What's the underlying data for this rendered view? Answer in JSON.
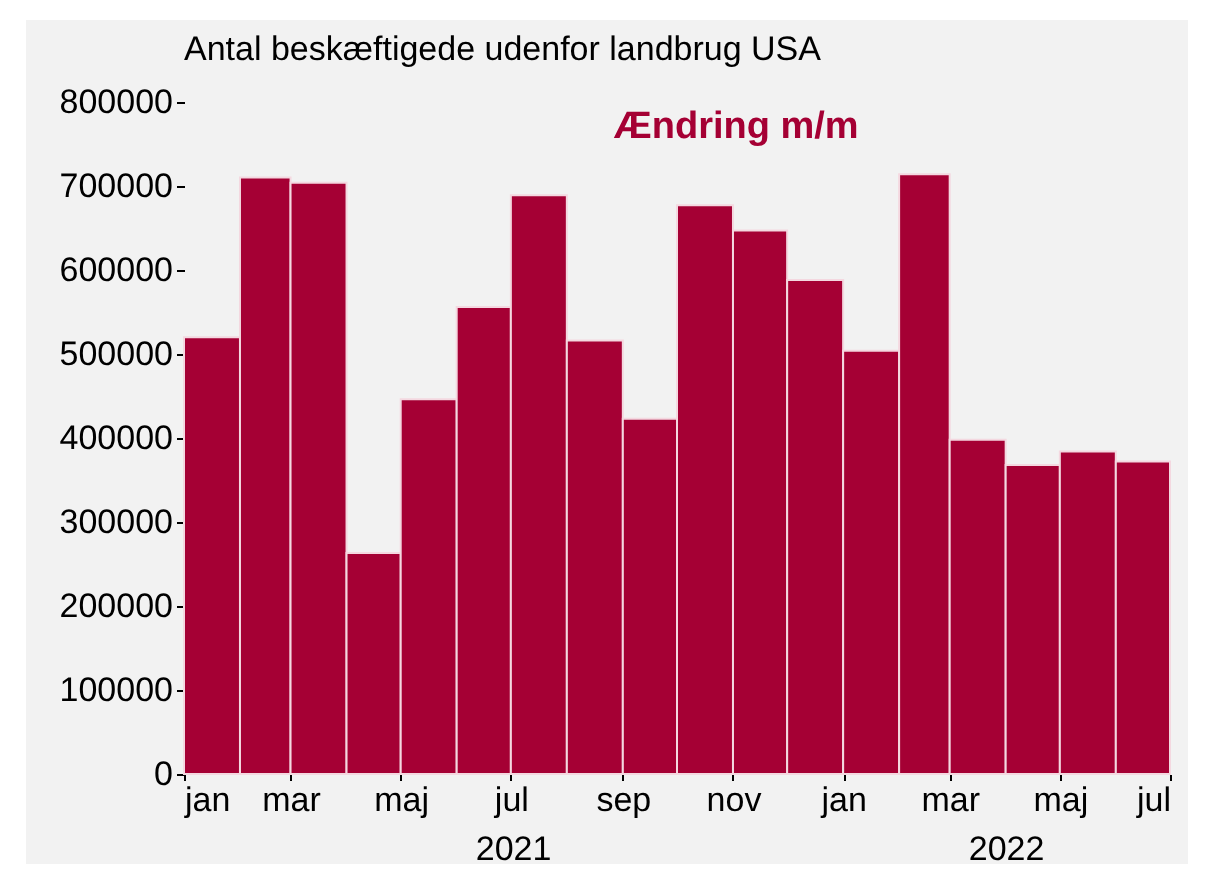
{
  "chart_data": {
    "type": "bar",
    "title": "Antal beskæftigede udenfor landbrug USA",
    "x": [
      "2021-01-16",
      "2021-02-15",
      "2021-03-16",
      "2021-04-16",
      "2021-05-16",
      "2021-06-16",
      "2021-07-16",
      "2021-08-16",
      "2021-09-16",
      "2021-10-16",
      "2021-11-16",
      "2021-12-16",
      "2022-01-16",
      "2022-02-15",
      "2022-03-16",
      "2022-04-16",
      "2022-05-16",
      "2022-06-16"
    ],
    "series": [
      {
        "name": "Ændring m/m",
        "color": "#a50034",
        "values": [
          520000,
          710000,
          704000,
          263000,
          446000,
          556000,
          689000,
          516000,
          423000,
          677000,
          647000,
          588000,
          504000,
          714000,
          398000,
          368000,
          384000,
          372000
        ]
      }
    ],
    "xlim": [
      "2021-01",
      "2022-07"
    ],
    "xticks": [
      {
        "value": "2021-01",
        "label": "jan"
      },
      {
        "value": "2021-03",
        "label": "mar"
      },
      {
        "value": "2021-05",
        "label": "maj"
      },
      {
        "value": "2021-07",
        "label": "jul"
      },
      {
        "value": "2021-09",
        "label": "sep"
      },
      {
        "value": "2021-11",
        "label": "nov"
      },
      {
        "value": "2022-01",
        "label": "jan"
      },
      {
        "value": "2022-03",
        "label": "mar"
      },
      {
        "value": "2022-05",
        "label": "maj"
      },
      {
        "value": "2022-07",
        "label": "jul"
      }
    ],
    "ylim": [
      0,
      800000
    ],
    "yticks": [
      0,
      100000,
      200000,
      300000,
      400000,
      500000,
      600000,
      700000,
      800000
    ],
    "annotations": [
      "2021",
      "2022"
    ],
    "grid": false
  }
}
